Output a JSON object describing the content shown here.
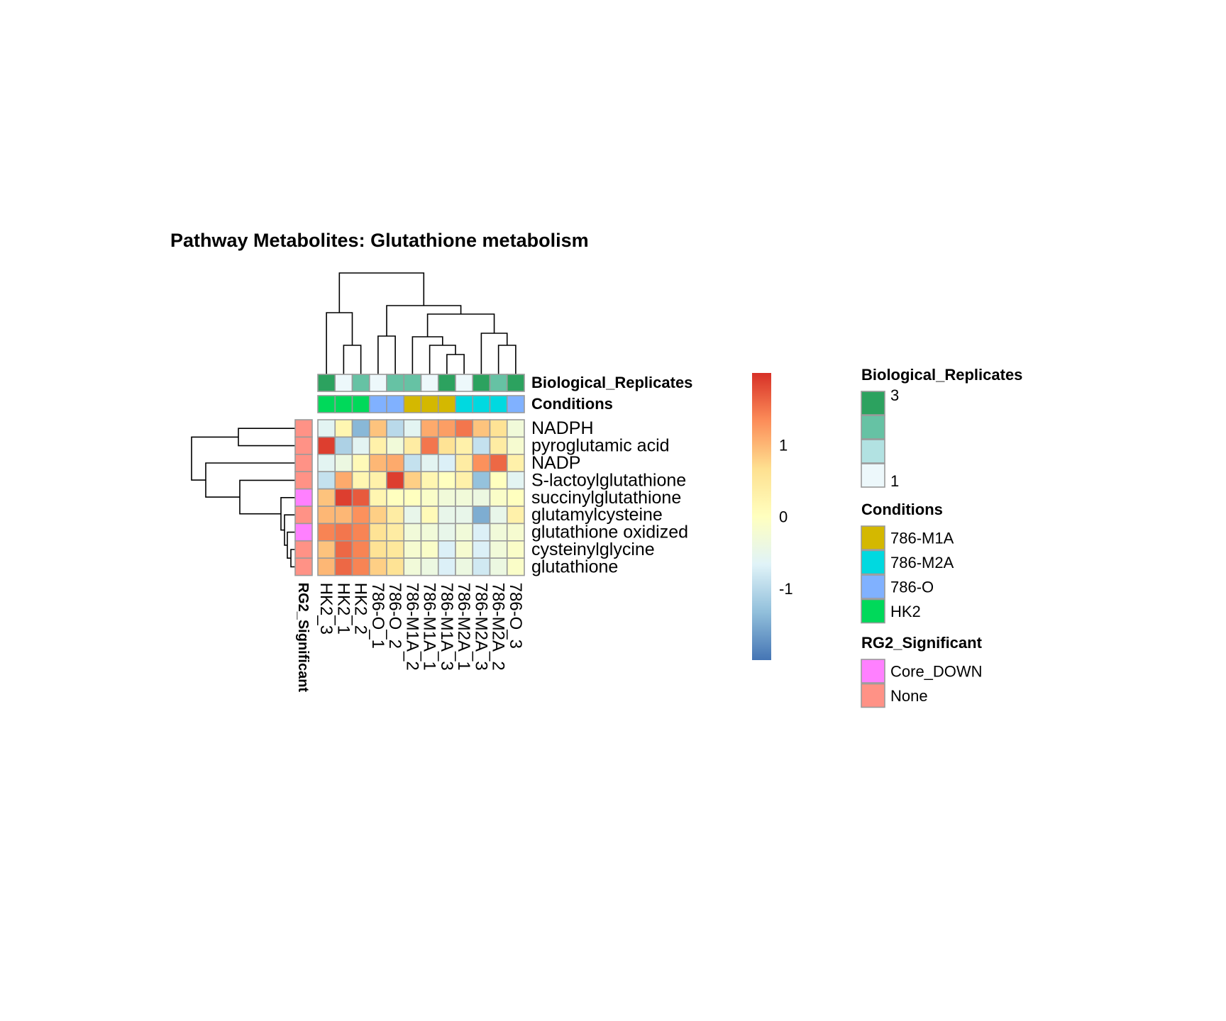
{
  "chart_data": {
    "type": "heatmap",
    "title": "Pathway  Metabolites:  Glutathione metabolism",
    "columns": [
      "HK2_3",
      "HK2_1",
      "HK2_2",
      "786-O_1",
      "786-O_2",
      "786-M1A_2",
      "786-M1A_1",
      "786-M1A_3",
      "786-M2A_1",
      "786-M2A_3",
      "786-M2A_2",
      "786-O_3"
    ],
    "rows": [
      "NADPH",
      "pyroglutamic acid",
      "NADP",
      "S-lactoylglutathione",
      "succinylglutathione",
      "glutamylcysteine",
      "glutathione oxidized",
      "cysteinylglycine",
      "glutathione"
    ],
    "values": [
      [
        -0.6,
        0.2,
        -1.4,
        0.9,
        -1.0,
        -0.6,
        1.1,
        1.2,
        1.5,
        0.9,
        0.6,
        -0.3
      ],
      [
        1.9,
        -1.1,
        -0.6,
        0.3,
        -0.3,
        0.4,
        1.5,
        0.6,
        0.3,
        -0.9,
        0.4,
        -0.2
      ],
      [
        -0.6,
        -0.4,
        0.1,
        1.0,
        1.1,
        -0.9,
        -0.6,
        -0.7,
        0.4,
        1.3,
        1.6,
        0.3
      ],
      [
        -0.9,
        1.1,
        0.2,
        0.3,
        1.9,
        0.8,
        0.2,
        0.0,
        0.3,
        -1.3,
        0.0,
        -0.6
      ],
      [
        0.9,
        1.9,
        1.7,
        0.2,
        0.0,
        0.0,
        -0.1,
        -0.3,
        -0.3,
        -0.4,
        -0.1,
        0.0
      ],
      [
        1.0,
        1.0,
        1.3,
        0.8,
        0.4,
        -0.5,
        0.1,
        -0.5,
        -0.5,
        -1.5,
        -0.5,
        0.3
      ],
      [
        1.4,
        1.5,
        1.4,
        0.6,
        0.4,
        -0.3,
        -0.3,
        -0.5,
        -0.3,
        -0.7,
        -0.3,
        -0.2
      ],
      [
        0.9,
        1.6,
        1.4,
        0.6,
        0.5,
        -0.2,
        -0.1,
        -0.7,
        -0.2,
        -0.7,
        -0.3,
        -0.1
      ],
      [
        1.0,
        1.6,
        1.4,
        0.8,
        0.6,
        -0.3,
        -0.4,
        -0.7,
        -0.4,
        -0.8,
        -0.4,
        -0.1
      ]
    ],
    "color_scale": {
      "colors": [
        "#4575b4",
        "#91bfdb",
        "#e0f3f8",
        "#ffffbf",
        "#fee090",
        "#fc8d59",
        "#d73027"
      ],
      "ticks": [
        "1",
        "0",
        "-1"
      ]
    },
    "col_annotations": {
      "Biological_Replicates": [
        3,
        1,
        2,
        1,
        2,
        2,
        1,
        3,
        1,
        3,
        2,
        3
      ],
      "Conditions": [
        "HK2",
        "HK2",
        "HK2",
        "786-O",
        "786-O",
        "786-M1A",
        "786-M1A",
        "786-M1A",
        "786-M2A",
        "786-M2A",
        "786-M2A",
        "786-O"
      ]
    },
    "row_annotations": {
      "RG2_Significant": [
        "None",
        "None",
        "None",
        "None",
        "Core_DOWN",
        "None",
        "Core_DOWN",
        "None",
        "None"
      ]
    },
    "annotation_labels": {
      "col": [
        "Biological_Replicates",
        "Conditions"
      ],
      "row": "RG2_Significant"
    },
    "legends": [
      {
        "title": "Biological_Replicates",
        "colors": [
          "#2ca25f",
          "#66c2a4",
          "#b2e2e2",
          "#edf8fb"
        ],
        "labels": [
          "3",
          "",
          "",
          "1"
        ]
      },
      {
        "title": "Conditions",
        "colors": [
          "#d4b800",
          "#00d9e0",
          "#80b1ff",
          "#00d95a"
        ],
        "labels": [
          "786-M1A",
          "786-M2A",
          "786-O",
          "HK2"
        ]
      },
      {
        "title": "RG2_Significant",
        "colors": [
          "#ff80ff",
          "#ff9286"
        ],
        "labels": [
          "Core_DOWN",
          "None"
        ]
      }
    ]
  }
}
